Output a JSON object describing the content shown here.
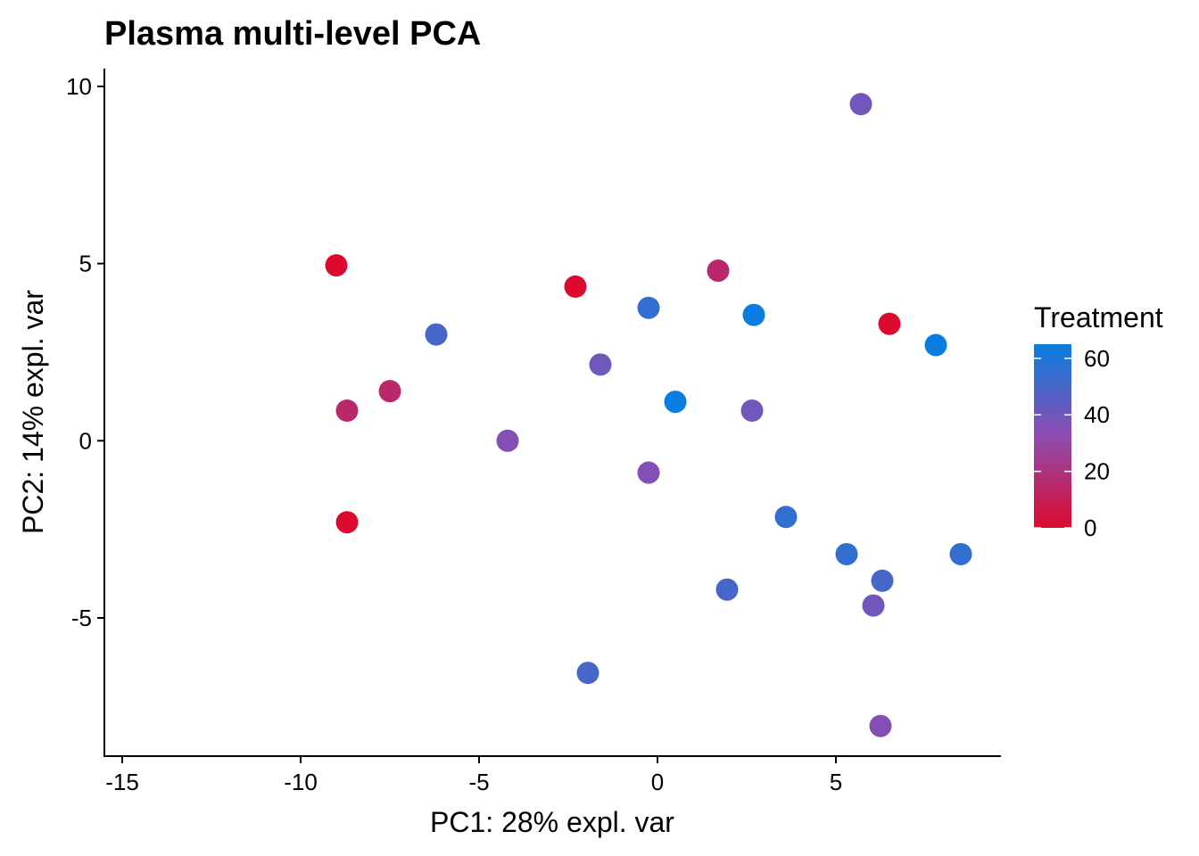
{
  "chart_data": {
    "type": "scatter",
    "title": "Plasma multi-level PCA",
    "xlabel": "PC1: 28% expl. var",
    "ylabel": "PC2: 14% expl. var",
    "xlim": [
      -15.5,
      9.6
    ],
    "ylim": [
      -8.9,
      10.5
    ],
    "xticks": [
      -15,
      -10,
      -5,
      0,
      5
    ],
    "xtick_labels": [
      "-15",
      "-10",
      "-5",
      "0",
      "5"
    ],
    "yticks": [
      -5,
      0,
      5,
      10
    ],
    "ytick_labels": [
      "-5",
      "0",
      "5",
      "10"
    ],
    "grid": false,
    "legend": {
      "title": "Treatment",
      "placement": "right",
      "type": "colorbar",
      "range": [
        0,
        65
      ],
      "ticks": [
        0,
        20,
        40,
        60
      ],
      "tick_labels": [
        "0",
        "20",
        "40",
        "60"
      ],
      "low_color": "#dc0a2e",
      "mid_color": "#8e4bb0",
      "high_color": "#0a7ee0"
    },
    "points": [
      {
        "x": -9.0,
        "y": 4.95,
        "treatment": 0
      },
      {
        "x": -8.7,
        "y": 0.85,
        "treatment": 15
      },
      {
        "x": -8.7,
        "y": -2.3,
        "treatment": 0
      },
      {
        "x": -7.5,
        "y": 1.4,
        "treatment": 15
      },
      {
        "x": -6.2,
        "y": 3.0,
        "treatment": 50
      },
      {
        "x": -4.2,
        "y": 0.0,
        "treatment": 35
      },
      {
        "x": -2.3,
        "y": 4.35,
        "treatment": 0
      },
      {
        "x": -1.6,
        "y": 2.15,
        "treatment": 40
      },
      {
        "x": -1.95,
        "y": -6.55,
        "treatment": 50
      },
      {
        "x": -0.25,
        "y": 3.75,
        "treatment": 55
      },
      {
        "x": -0.25,
        "y": -0.9,
        "treatment": 35
      },
      {
        "x": 0.5,
        "y": 1.1,
        "treatment": 65
      },
      {
        "x": 1.7,
        "y": 4.8,
        "treatment": 15
      },
      {
        "x": 1.95,
        "y": -4.2,
        "treatment": 50
      },
      {
        "x": 2.7,
        "y": 3.55,
        "treatment": 65
      },
      {
        "x": 2.65,
        "y": 0.85,
        "treatment": 40
      },
      {
        "x": 3.6,
        "y": -2.15,
        "treatment": 55
      },
      {
        "x": 5.7,
        "y": 9.5,
        "treatment": 40
      },
      {
        "x": 5.3,
        "y": -3.2,
        "treatment": 55
      },
      {
        "x": 6.3,
        "y": -3.95,
        "treatment": 50
      },
      {
        "x": 6.05,
        "y": -4.65,
        "treatment": 40
      },
      {
        "x": 6.25,
        "y": -8.05,
        "treatment": 35
      },
      {
        "x": 6.5,
        "y": 3.3,
        "treatment": 0
      },
      {
        "x": 7.8,
        "y": 2.7,
        "treatment": 65
      },
      {
        "x": 8.5,
        "y": -3.2,
        "treatment": 55
      }
    ]
  }
}
